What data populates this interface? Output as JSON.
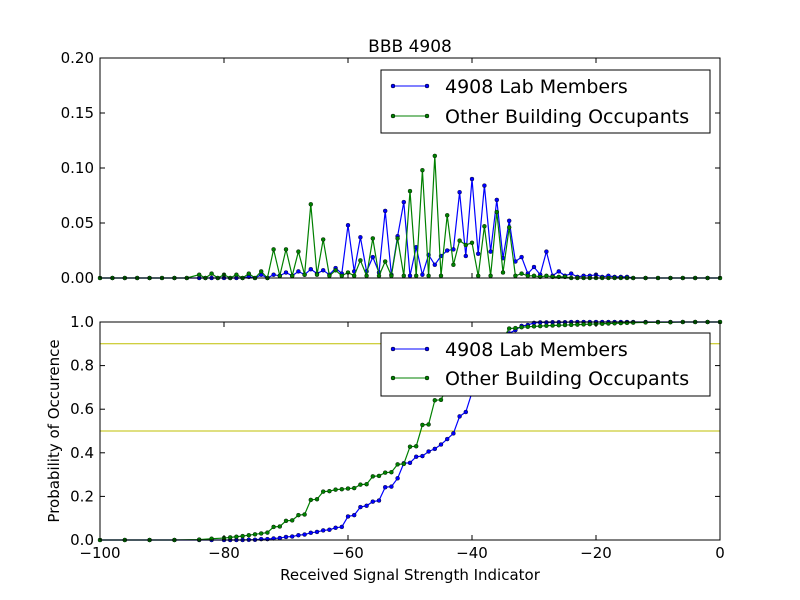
{
  "chart_data": [
    {
      "type": "line",
      "title": "BBB 4908",
      "xlabel": "",
      "ylabel": "",
      "xlim": [
        -100,
        0
      ],
      "ylim": [
        0,
        0.2
      ],
      "yticks": [
        "0.00",
        "0.05",
        "0.10",
        "0.15",
        "0.20"
      ],
      "xticks": [],
      "grid": false,
      "legend_placement": "top-right",
      "x": [
        -100,
        -98,
        -96,
        -94,
        -92,
        -90,
        -88,
        -86,
        -84,
        -83,
        -82,
        -81,
        -80,
        -79,
        -78,
        -77,
        -76,
        -75,
        -74,
        -73,
        -72,
        -71,
        -70,
        -69,
        -68,
        -67,
        -66,
        -65,
        -64,
        -63,
        -62,
        -61,
        -60,
        -59,
        -58,
        -57,
        -56,
        -55,
        -54,
        -53,
        -52,
        -51,
        -50,
        -49,
        -48,
        -47,
        -46,
        -45,
        -44,
        -43,
        -42,
        -41,
        -40,
        -39,
        -38,
        -37,
        -36,
        -35,
        -34,
        -33,
        -32,
        -31,
        -30,
        -29,
        -28,
        -27,
        -26,
        -25,
        -24,
        -23,
        -22,
        -21,
        -20,
        -19,
        -18,
        -17,
        -16,
        -15,
        -14,
        -12,
        -10,
        -8,
        -6,
        -4,
        -2,
        0
      ],
      "series": [
        {
          "name": "4908 Lab Members",
          "color": "#0000ff",
          "values": [
            0,
            0,
            0,
            0,
            0,
            0,
            0,
            0,
            0,
            0,
            0,
            0,
            0,
            0,
            0,
            0,
            0.001,
            0,
            0.003,
            0,
            0.003,
            0.002,
            0.005,
            0.002,
            0.006,
            0.003,
            0.008,
            0.004,
            0.007,
            0.003,
            0.009,
            0.004,
            0.048,
            0.006,
            0.037,
            0.006,
            0.019,
            0.005,
            0.061,
            0.003,
            0.038,
            0.069,
            0.002,
            0.028,
            0.003,
            0.021,
            0.012,
            0.02,
            0.025,
            0.026,
            0.078,
            0.02,
            0.09,
            0.022,
            0.084,
            0.024,
            0.071,
            0.018,
            0.052,
            0.015,
            0.019,
            0.004,
            0.01,
            0.003,
            0.024,
            0.002,
            0.006,
            0.002,
            0.004,
            0.001,
            0.002,
            0.002,
            0.003,
            0.001,
            0.002,
            0.001,
            0.001,
            0.001,
            0,
            0,
            0,
            0,
            0,
            0,
            0,
            0
          ]
        },
        {
          "name": "Other Building Occupants",
          "color": "#008000",
          "values": [
            0,
            0,
            0,
            0,
            0,
            0,
            0,
            0,
            0.003,
            0,
            0.004,
            0,
            0.003,
            0,
            0.003,
            0,
            0.004,
            0,
            0.006,
            0,
            0.026,
            0.002,
            0.026,
            0.002,
            0.024,
            0.003,
            0.067,
            0.003,
            0.035,
            0.002,
            0.007,
            0.002,
            0.005,
            0.002,
            0.016,
            0.002,
            0.036,
            0.002,
            0.015,
            0.002,
            0.036,
            0.002,
            0.079,
            0.002,
            0.098,
            0.002,
            0.111,
            0.002,
            0.057,
            0.012,
            0.034,
            0.03,
            0.032,
            0.002,
            0.047,
            0.002,
            0.06,
            0.005,
            0.046,
            0.002,
            0.004,
            0.002,
            0.002,
            0.001,
            0.002,
            0.001,
            0.001,
            0.001,
            0,
            0,
            0,
            0,
            0,
            0,
            0,
            0,
            0,
            0,
            0,
            0,
            0,
            0,
            0,
            0,
            0,
            0
          ]
        }
      ]
    },
    {
      "type": "line",
      "title": "",
      "xlabel": "Received Signal Strength Indicator",
      "ylabel": "Probability of Occurence",
      "xlim": [
        -100,
        0
      ],
      "ylim": [
        0,
        1.0
      ],
      "xticks": [
        "−100",
        "−80",
        "−60",
        "−40",
        "−20",
        "0"
      ],
      "yticks": [
        "0.0",
        "0.2",
        "0.4",
        "0.6",
        "0.8",
        "1.0"
      ],
      "grid": false,
      "legend_placement": "center-right",
      "hlines": [
        {
          "y": 0.9,
          "color": "#bfbf00"
        },
        {
          "y": 0.5,
          "color": "#bfbf00"
        }
      ],
      "x": [
        -100,
        -96,
        -92,
        -88,
        -84,
        -82,
        -80,
        -79,
        -78,
        -77,
        -76,
        -75,
        -74,
        -73,
        -72,
        -71,
        -70,
        -69,
        -68,
        -67,
        -66,
        -65,
        -64,
        -63,
        -62,
        -61,
        -60,
        -59,
        -58,
        -57,
        -56,
        -55,
        -54,
        -53,
        -52,
        -51,
        -50,
        -49,
        -48,
        -47,
        -46,
        -45,
        -44,
        -43,
        -42,
        -41,
        -40,
        -39,
        -38,
        -37,
        -36,
        -35,
        -34,
        -33,
        -32,
        -31,
        -30,
        -29,
        -28,
        -27,
        -26,
        -25,
        -24,
        -23,
        -22,
        -21,
        -20,
        -19,
        -18,
        -17,
        -16,
        -15,
        -14,
        -12,
        -10,
        -8,
        -6,
        -4,
        -2,
        0
      ],
      "series": [
        {
          "name": "4908 Lab Members",
          "color": "#0000ff",
          "values": [
            0,
            0,
            0,
            0,
            0,
            0,
            0,
            0,
            0,
            0,
            0.001,
            0.001,
            0.004,
            0.004,
            0.007,
            0.009,
            0.014,
            0.016,
            0.022,
            0.025,
            0.033,
            0.037,
            0.044,
            0.047,
            0.056,
            0.06,
            0.108,
            0.114,
            0.151,
            0.157,
            0.176,
            0.181,
            0.242,
            0.245,
            0.283,
            0.352,
            0.354,
            0.382,
            0.385,
            0.406,
            0.418,
            0.438,
            0.463,
            0.489,
            0.567,
            0.587,
            0.677,
            0.699,
            0.783,
            0.807,
            0.878,
            0.896,
            0.948,
            0.963,
            0.982,
            0.986,
            0.996,
            0.998,
            0.998,
            0.999,
            0.999,
            0.999,
            1.0,
            1.0,
            1.0,
            1.0,
            1.0,
            1.0,
            1.0,
            1.0,
            1.0,
            1.0,
            1.0,
            1.0,
            1.0,
            1.0,
            1.0,
            1.0,
            1.0,
            1.0
          ]
        },
        {
          "name": "Other Building Occupants",
          "color": "#008000",
          "values": [
            0,
            0,
            0,
            0,
            0.002,
            0.006,
            0.009,
            0.012,
            0.015,
            0.018,
            0.022,
            0.026,
            0.03,
            0.034,
            0.06,
            0.062,
            0.088,
            0.09,
            0.114,
            0.117,
            0.184,
            0.187,
            0.222,
            0.224,
            0.231,
            0.233,
            0.236,
            0.238,
            0.254,
            0.256,
            0.292,
            0.294,
            0.309,
            0.311,
            0.347,
            0.349,
            0.428,
            0.43,
            0.528,
            0.53,
            0.641,
            0.643,
            0.7,
            0.712,
            0.746,
            0.776,
            0.808,
            0.81,
            0.857,
            0.859,
            0.919,
            0.924,
            0.97,
            0.972,
            0.976,
            0.978,
            0.98,
            0.981,
            0.983,
            0.984,
            0.985,
            0.986,
            0.987,
            0.988,
            0.989,
            0.99,
            0.991,
            0.992,
            0.993,
            0.994,
            0.995,
            0.996,
            0.997,
            0.998,
            0.999,
            0.999,
            1.0,
            1.0,
            1.0,
            1.0
          ]
        }
      ]
    }
  ]
}
